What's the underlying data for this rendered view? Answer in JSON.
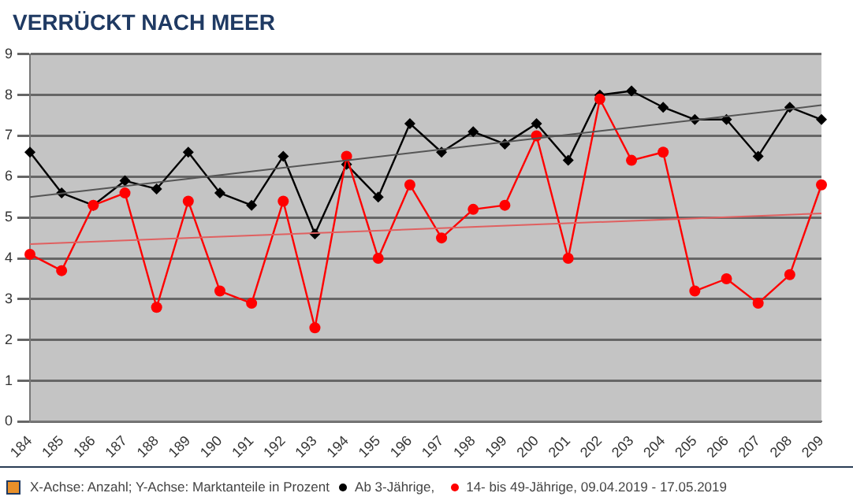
{
  "chart_data": {
    "type": "line",
    "title": "VERRÜCKT NACH MEER",
    "categories": [
      "184",
      "185",
      "186",
      "187",
      "188",
      "189",
      "190",
      "191",
      "192",
      "193",
      "194",
      "195",
      "196",
      "197",
      "198",
      "199",
      "200",
      "201",
      "202",
      "203",
      "204",
      "205",
      "206",
      "207",
      "208",
      "209"
    ],
    "series": [
      {
        "name": "Ab 3-Jährige,",
        "color": "#000000",
        "marker": "diamond",
        "values": [
          6.6,
          5.6,
          5.3,
          5.9,
          5.7,
          6.6,
          5.6,
          5.3,
          6.5,
          4.6,
          6.3,
          5.5,
          7.3,
          6.6,
          7.1,
          6.8,
          7.3,
          6.4,
          8.0,
          8.1,
          7.7,
          7.4,
          7.4,
          6.5,
          7.7,
          7.4
        ]
      },
      {
        "name": "14- bis 49-Jährige, 09.04.2019 - 17.05.2019",
        "color": "#ff0000",
        "marker": "circle",
        "values": [
          4.1,
          3.7,
          5.3,
          5.6,
          2.8,
          5.4,
          3.2,
          2.9,
          5.4,
          2.3,
          6.5,
          4.0,
          5.8,
          4.5,
          5.2,
          5.3,
          7.0,
          4.0,
          7.9,
          6.4,
          6.6,
          3.2,
          3.5,
          2.9,
          3.6,
          5.8
        ]
      },
      {
        "type": "line",
        "color": "#555555",
        "marker": "none",
        "x": [
          "184",
          "209"
        ],
        "values": [
          5.5,
          7.75
        ]
      },
      {
        "type": "line",
        "color": "#e06060",
        "marker": "none",
        "x": [
          "184",
          "209"
        ],
        "values": [
          4.35,
          5.1
        ]
      }
    ],
    "ylim": [
      0,
      9
    ],
    "yticks": [
      0,
      1,
      2,
      3,
      4,
      5,
      6,
      7,
      8,
      9
    ],
    "grid": "y",
    "legend": "bottom",
    "annotations": [
      "X-Achse: Anzahl; Y-Achse: Marktanteile in Prozent"
    ]
  }
}
